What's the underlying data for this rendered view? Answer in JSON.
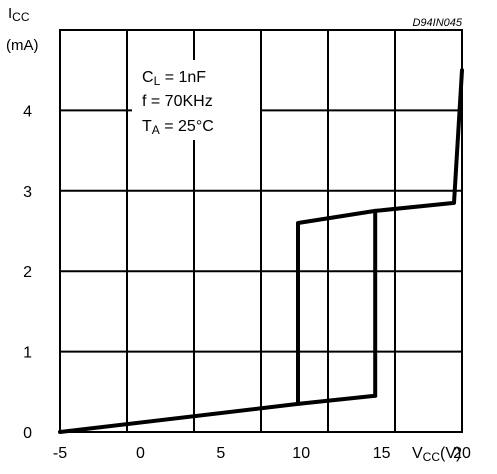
{
  "chart_data": {
    "type": "line",
    "figure_id": "D94IN045",
    "ylabel": {
      "main": "I",
      "sub": "CC",
      "unit": "(mA)"
    },
    "xlabel": {
      "main": "V",
      "sub": "CC",
      "unit": "(V)"
    },
    "xlim": [
      -5,
      20
    ],
    "ylim": [
      0,
      5
    ],
    "x_ticks": [
      -5,
      0,
      5,
      10,
      15,
      20
    ],
    "y_ticks": [
      0,
      1,
      2,
      3,
      4
    ],
    "grid": true,
    "conditions": [
      {
        "main": "C",
        "sub": "L",
        "rest": " = 1nF"
      },
      {
        "main": "f = 70KHz",
        "sub": "",
        "rest": ""
      },
      {
        "main": "T",
        "sub": "A",
        "rest": " = 25°C"
      }
    ],
    "series": [
      {
        "x": [
          -5,
          9.8,
          14.6
        ],
        "y": [
          0,
          0.35,
          0.45
        ]
      },
      {
        "x": [
          9.8,
          9.8,
          14.6,
          19.5,
          20
        ],
        "y": [
          0.35,
          2.6,
          2.75,
          2.85,
          4.5
        ]
      },
      {
        "x": [
          14.6,
          14.6
        ],
        "y": [
          0.45,
          2.75
        ]
      }
    ]
  }
}
